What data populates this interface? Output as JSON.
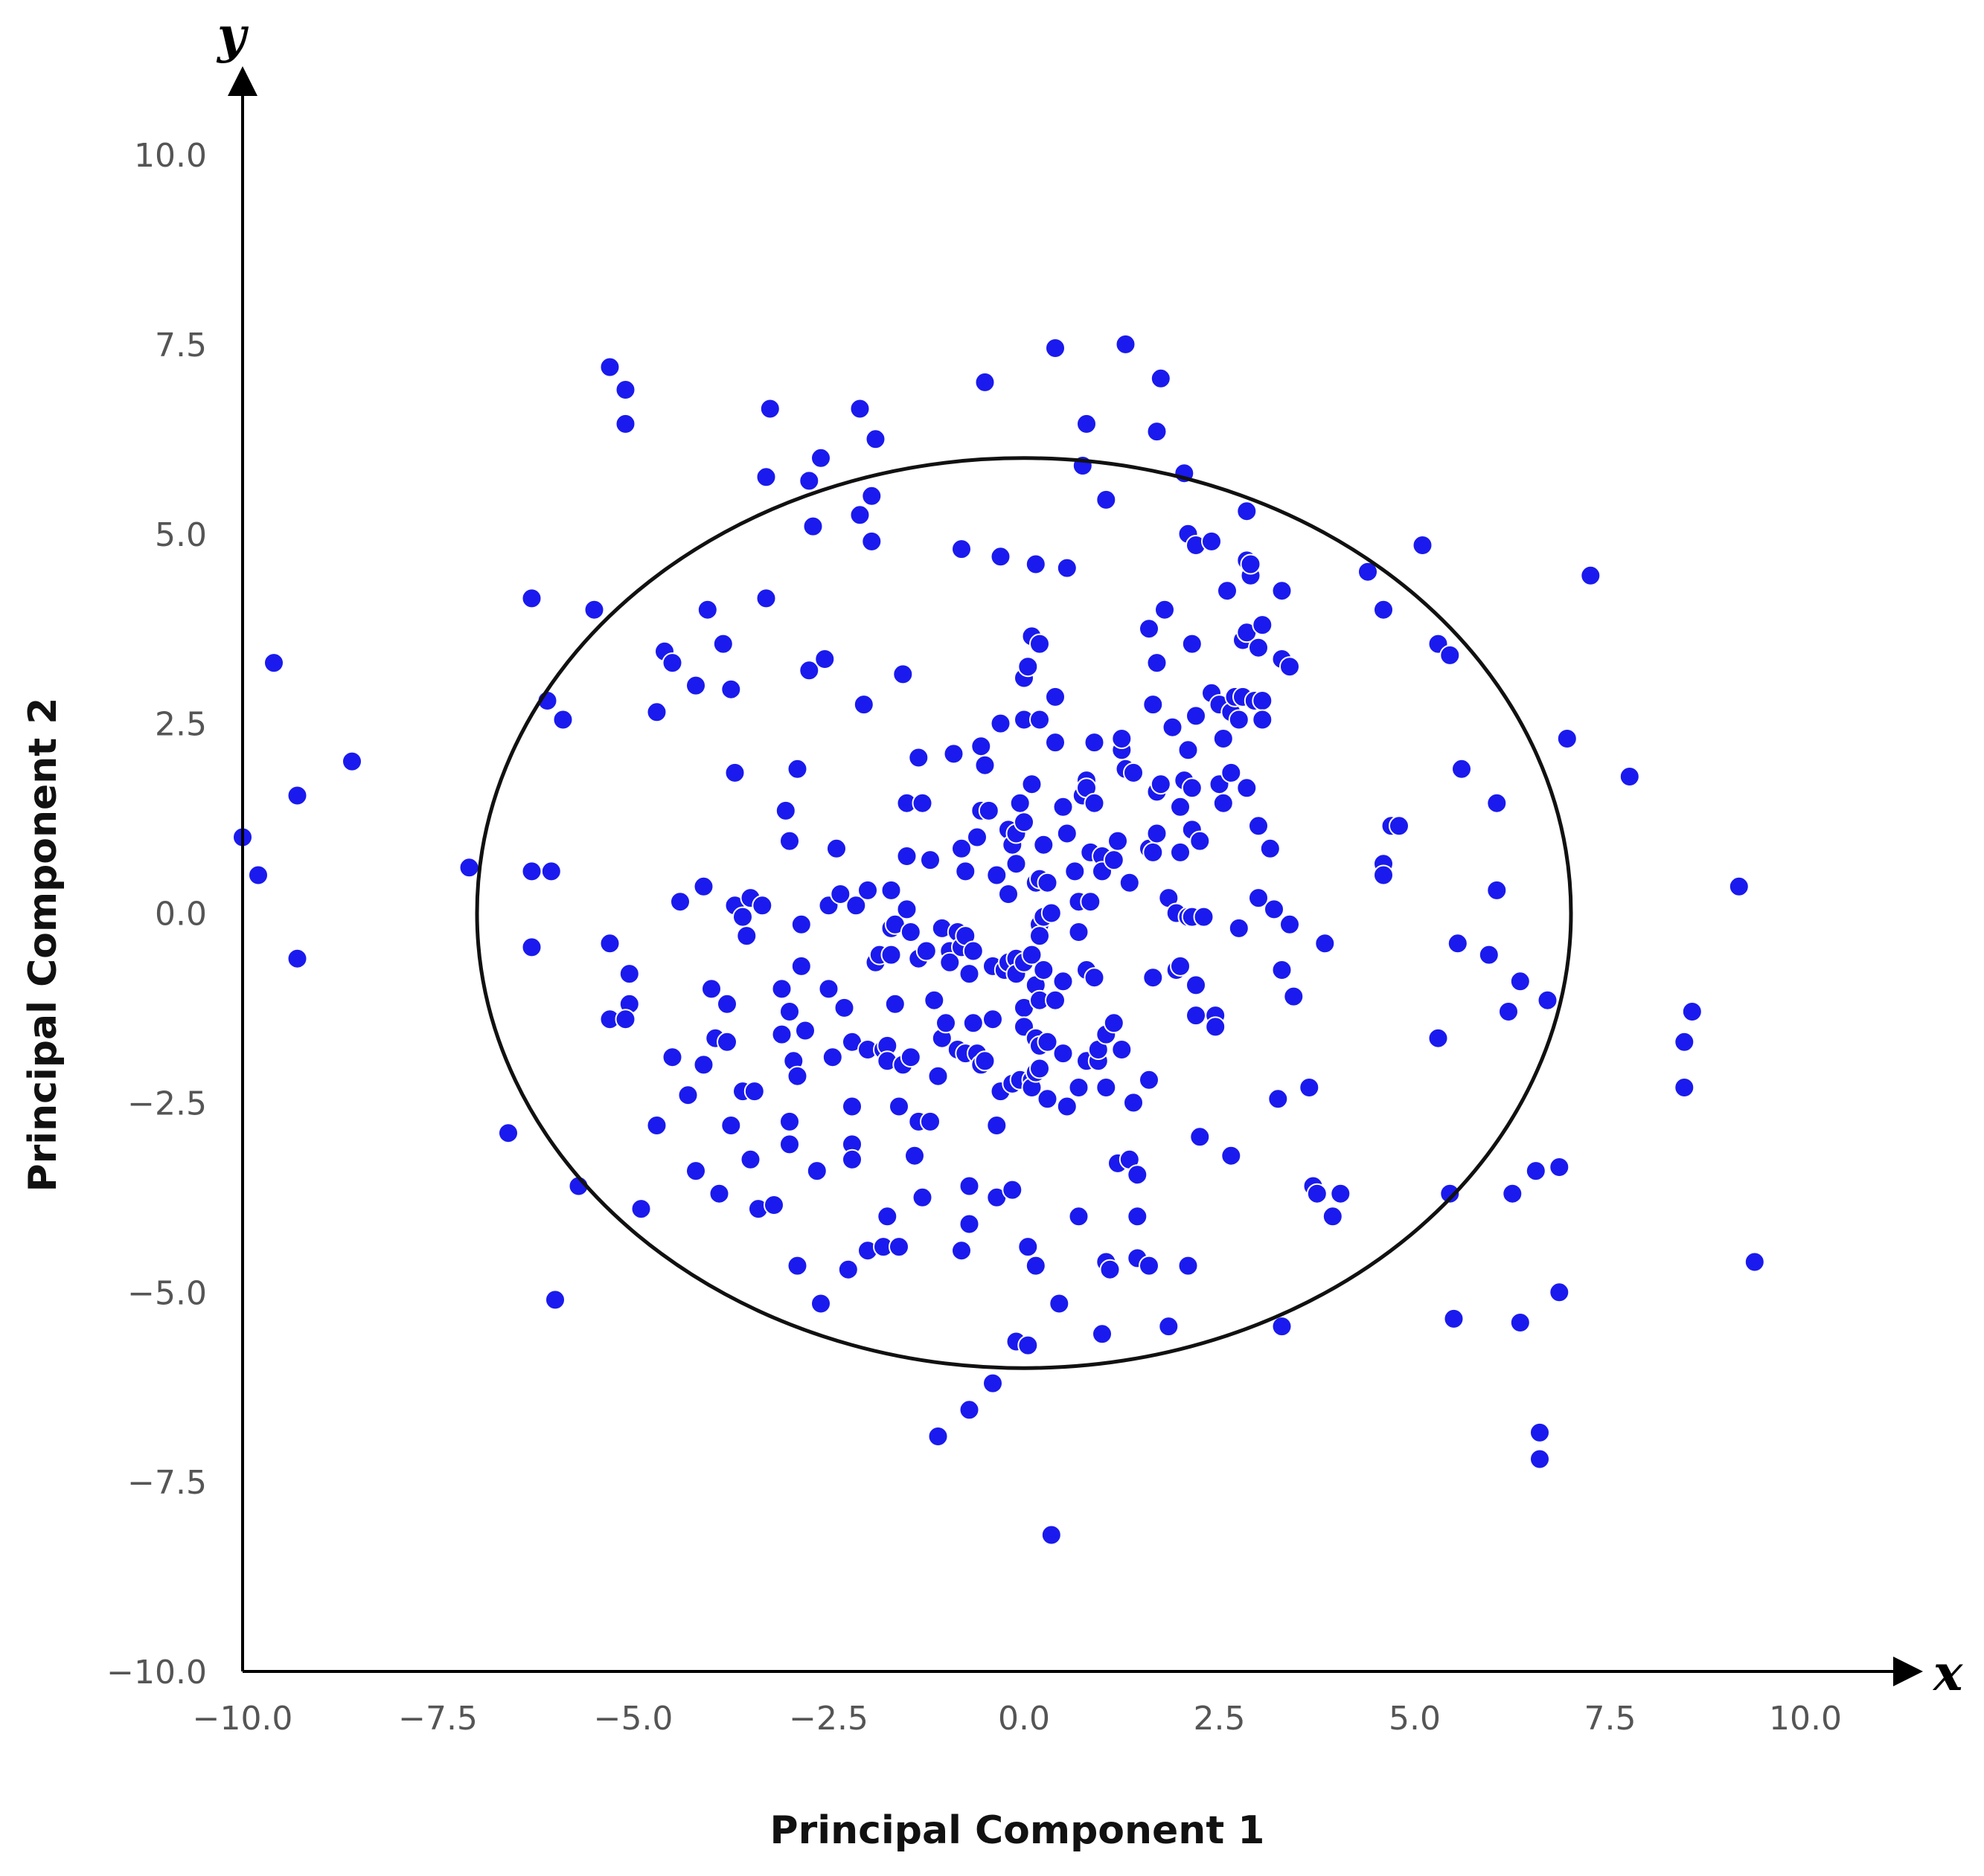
{
  "chart_data": {
    "type": "scatter",
    "xlabel": "Principal Component 1",
    "ylabel": "Principal Component 2",
    "x_axis_letter": "x",
    "y_axis_letter": "y",
    "xlim": [
      -10,
      10.8
    ],
    "ylim": [
      -10,
      11
    ],
    "x_ticks": [
      "−10.0",
      "−7.5",
      "−5.0",
      "−2.5",
      "0.0",
      "2.5",
      "5.0",
      "7.5",
      "10.0"
    ],
    "x_tick_values": [
      -10,
      -7.5,
      -5,
      -2.5,
      0,
      2.5,
      5,
      7.5,
      10
    ],
    "y_ticks": [
      "−10.0",
      "−7.5",
      "−5.0",
      "−2.5",
      "0.0",
      "2.5",
      "5.0",
      "7.5",
      "10.0"
    ],
    "y_tick_values": [
      -10,
      -7.5,
      -5,
      -2.5,
      0,
      2.5,
      5,
      7.5,
      10
    ],
    "grid": false,
    "colors": {
      "points": "#1a1aee",
      "circle": "#111111",
      "axes": "#000000"
    },
    "circle": {
      "center": [
        0,
        0
      ],
      "rx": 7.0,
      "ry": 6.0
    },
    "points": [
      [
        -10.0,
        1.0
      ],
      [
        -9.8,
        0.5
      ],
      [
        -9.6,
        3.3
      ],
      [
        -9.3,
        1.55
      ],
      [
        -9.3,
        -0.6
      ],
      [
        -8.6,
        2.0
      ],
      [
        -7.1,
        0.6
      ],
      [
        -6.6,
        -2.9
      ],
      [
        -6.3,
        4.15
      ],
      [
        -6.3,
        0.55
      ],
      [
        -6.3,
        -0.45
      ],
      [
        -6.1,
        2.8
      ],
      [
        -6.05,
        0.55
      ],
      [
        -6.0,
        -5.1
      ],
      [
        -5.9,
        2.55
      ],
      [
        -5.7,
        -3.6
      ],
      [
        -5.5,
        4.0
      ],
      [
        -5.3,
        7.2
      ],
      [
        -5.3,
        -0.4
      ],
      [
        -5.3,
        -1.4
      ],
      [
        -5.1,
        6.9
      ],
      [
        -5.1,
        6.45
      ],
      [
        -5.05,
        -0.8
      ],
      [
        -5.05,
        -1.2
      ],
      [
        -5.1,
        -1.4
      ],
      [
        -4.9,
        -3.9
      ],
      [
        -4.7,
        -2.8
      ],
      [
        -4.7,
        2.65
      ],
      [
        -4.6,
        3.45
      ],
      [
        -4.5,
        -1.9
      ],
      [
        -4.5,
        3.3
      ],
      [
        -4.4,
        0.15
      ],
      [
        -4.3,
        -2.4
      ],
      [
        -4.2,
        -3.4
      ],
      [
        -4.2,
        3.0
      ],
      [
        -4.1,
        0.35
      ],
      [
        -4.1,
        -2.0
      ],
      [
        -4.05,
        4.0
      ],
      [
        -4.0,
        -1.0
      ],
      [
        -3.95,
        -1.65
      ],
      [
        -3.9,
        -3.7
      ],
      [
        -3.85,
        3.55
      ],
      [
        -3.8,
        -1.2
      ],
      [
        -3.8,
        -1.7
      ],
      [
        -3.75,
        2.95
      ],
      [
        -3.75,
        -2.8
      ],
      [
        -3.7,
        1.85
      ],
      [
        -3.7,
        0.1
      ],
      [
        -3.6,
        -0.05
      ],
      [
        -3.6,
        -2.35
      ],
      [
        -3.55,
        -0.3
      ],
      [
        -3.5,
        0.2
      ],
      [
        -3.5,
        -3.25
      ],
      [
        -3.45,
        -2.35
      ],
      [
        -3.4,
        -3.9
      ],
      [
        -3.35,
        0.1
      ],
      [
        -3.3,
        4.15
      ],
      [
        -3.3,
        5.75
      ],
      [
        -3.25,
        6.65
      ],
      [
        -3.2,
        -3.85
      ],
      [
        -3.1,
        -1.0
      ],
      [
        -3.1,
        -1.6
      ],
      [
        -3.05,
        1.35
      ],
      [
        -3.0,
        -2.75
      ],
      [
        -3.0,
        -3.05
      ],
      [
        -3.0,
        0.95
      ],
      [
        -3.0,
        -1.3
      ],
      [
        -2.95,
        -1.95
      ],
      [
        -2.9,
        -2.15
      ],
      [
        -2.9,
        1.9
      ],
      [
        -2.9,
        -4.65
      ],
      [
        -2.85,
        -0.15
      ],
      [
        -2.85,
        -0.7
      ],
      [
        -2.8,
        -1.55
      ],
      [
        -2.75,
        3.2
      ],
      [
        -2.75,
        5.7
      ],
      [
        -2.7,
        5.1
      ],
      [
        -2.65,
        -3.4
      ],
      [
        -2.6,
        -5.15
      ],
      [
        -2.6,
        6.0
      ],
      [
        -2.55,
        3.35
      ],
      [
        -2.5,
        0.1
      ],
      [
        -2.5,
        -1.0
      ],
      [
        -2.45,
        -1.9
      ],
      [
        -2.4,
        0.85
      ],
      [
        -2.35,
        0.25
      ],
      [
        -2.3,
        -1.25
      ],
      [
        -2.25,
        -4.7
      ],
      [
        -2.2,
        -1.7
      ],
      [
        -2.2,
        -2.55
      ],
      [
        -2.2,
        -3.05
      ],
      [
        -2.2,
        -3.25
      ],
      [
        -2.15,
        0.1
      ],
      [
        -2.1,
        5.25
      ],
      [
        -2.1,
        6.65
      ],
      [
        -2.05,
        2.75
      ],
      [
        -2.0,
        0.3
      ],
      [
        -2.0,
        -1.8
      ],
      [
        -2.0,
        -4.45
      ],
      [
        -1.95,
        5.5
      ],
      [
        -1.95,
        4.9
      ],
      [
        -1.9,
        6.25
      ],
      [
        -1.9,
        -0.65
      ],
      [
        -1.85,
        -0.55
      ],
      [
        -1.8,
        -1.8
      ],
      [
        -1.8,
        -4.4
      ],
      [
        -1.75,
        -1.75
      ],
      [
        -1.75,
        -1.95
      ],
      [
        -1.75,
        -4.0
      ],
      [
        -1.7,
        0.3
      ],
      [
        -1.7,
        -0.2
      ],
      [
        -1.7,
        -0.55
      ],
      [
        -1.65,
        -0.15
      ],
      [
        -1.65,
        -1.2
      ],
      [
        -1.6,
        -2.55
      ],
      [
        -1.6,
        -4.4
      ],
      [
        -1.55,
        -2.0
      ],
      [
        -1.55,
        3.15
      ],
      [
        -1.5,
        1.45
      ],
      [
        -1.5,
        0.75
      ],
      [
        -1.5,
        0.05
      ],
      [
        -1.45,
        -0.25
      ],
      [
        -1.45,
        -1.9
      ],
      [
        -1.4,
        -3.2
      ],
      [
        -1.35,
        2.05
      ],
      [
        -1.35,
        -0.6
      ],
      [
        -1.35,
        -2.75
      ],
      [
        -1.3,
        1.45
      ],
      [
        -1.3,
        -3.75
      ],
      [
        -1.25,
        -0.5
      ],
      [
        -1.2,
        -2.75
      ],
      [
        -1.2,
        0.7
      ],
      [
        -1.15,
        -1.15
      ],
      [
        -1.1,
        -2.15
      ],
      [
        -1.1,
        -6.9
      ],
      [
        -1.05,
        -0.2
      ],
      [
        -1.05,
        -1.65
      ],
      [
        -1.0,
        -1.45
      ],
      [
        -0.95,
        -0.5
      ],
      [
        -0.95,
        -0.65
      ],
      [
        -0.9,
        2.1
      ],
      [
        -0.85,
        -0.25
      ],
      [
        -0.85,
        -1.8
      ],
      [
        -0.8,
        -0.45
      ],
      [
        -0.8,
        4.8
      ],
      [
        -0.8,
        0.85
      ],
      [
        -0.8,
        -4.45
      ],
      [
        -0.75,
        0.55
      ],
      [
        -0.75,
        -0.3
      ],
      [
        -0.75,
        -1.85
      ],
      [
        -0.7,
        -0.8
      ],
      [
        -0.7,
        -3.6
      ],
      [
        -0.7,
        -4.1
      ],
      [
        -0.7,
        -6.55
      ],
      [
        -0.65,
        -0.5
      ],
      [
        -0.65,
        -1.45
      ],
      [
        -0.6,
        1.0
      ],
      [
        -0.6,
        -1.85
      ],
      [
        -0.55,
        2.2
      ],
      [
        -0.55,
        1.35
      ],
      [
        -0.55,
        -2.0
      ],
      [
        -0.5,
        7.0
      ],
      [
        -0.5,
        1.95
      ],
      [
        -0.5,
        -1.95
      ],
      [
        -0.45,
        1.35
      ],
      [
        -0.4,
        -0.7
      ],
      [
        -0.4,
        -1.4
      ],
      [
        -0.4,
        -6.2
      ],
      [
        -0.35,
        -2.8
      ],
      [
        -0.35,
        0.5
      ],
      [
        -0.35,
        -3.75
      ],
      [
        -0.3,
        4.7
      ],
      [
        -0.3,
        2.5
      ],
      [
        -0.3,
        -2.35
      ],
      [
        -0.25,
        -0.75
      ],
      [
        -0.2,
        0.25
      ],
      [
        -0.2,
        1.1
      ],
      [
        -0.2,
        -0.65
      ],
      [
        -0.15,
        0.9
      ],
      [
        -0.15,
        -2.25
      ],
      [
        -0.15,
        -3.65
      ],
      [
        -0.1,
        1.05
      ],
      [
        -0.1,
        0.65
      ],
      [
        -0.1,
        -0.6
      ],
      [
        -0.1,
        -0.8
      ],
      [
        -0.1,
        -5.65
      ],
      [
        -0.05,
        1.45
      ],
      [
        -0.05,
        -2.2
      ],
      [
        0.0,
        1.2
      ],
      [
        0.0,
        -0.65
      ],
      [
        0.0,
        -1.25
      ],
      [
        0.0,
        -1.5
      ],
      [
        0.0,
        2.55
      ],
      [
        0.0,
        3.1
      ],
      [
        0.05,
        3.25
      ],
      [
        0.05,
        -4.4
      ],
      [
        0.05,
        -5.7
      ],
      [
        0.1,
        3.65
      ],
      [
        0.1,
        1.7
      ],
      [
        0.1,
        -0.55
      ],
      [
        0.1,
        -2.2
      ],
      [
        0.1,
        -2.3
      ],
      [
        0.15,
        4.6
      ],
      [
        0.15,
        0.4
      ],
      [
        0.15,
        -0.95
      ],
      [
        0.15,
        -1.65
      ],
      [
        0.15,
        -2.1
      ],
      [
        0.15,
        -4.65
      ],
      [
        0.2,
        2.55
      ],
      [
        0.2,
        3.55
      ],
      [
        0.2,
        0.45
      ],
      [
        0.2,
        -0.15
      ],
      [
        0.2,
        -0.3
      ],
      [
        0.2,
        -1.15
      ],
      [
        0.2,
        -1.75
      ],
      [
        0.2,
        -2.05
      ],
      [
        0.25,
        0.9
      ],
      [
        0.25,
        -0.05
      ],
      [
        0.25,
        -0.75
      ],
      [
        0.3,
        0.4
      ],
      [
        0.3,
        -2.45
      ],
      [
        0.3,
        -1.7
      ],
      [
        0.35,
        0.0
      ],
      [
        0.35,
        -8.2
      ],
      [
        0.4,
        7.45
      ],
      [
        0.4,
        2.25
      ],
      [
        0.4,
        2.85
      ],
      [
        0.4,
        -1.15
      ],
      [
        0.45,
        -5.15
      ],
      [
        0.5,
        1.4
      ],
      [
        0.5,
        -0.9
      ],
      [
        0.5,
        -1.85
      ],
      [
        0.55,
        4.55
      ],
      [
        0.55,
        1.05
      ],
      [
        0.55,
        -2.55
      ],
      [
        0.65,
        0.55
      ],
      [
        0.7,
        0.15
      ],
      [
        0.7,
        -0.25
      ],
      [
        0.7,
        -4.0
      ],
      [
        0.7,
        -2.3
      ],
      [
        0.75,
        5.9
      ],
      [
        0.75,
        1.55
      ],
      [
        0.8,
        6.45
      ],
      [
        0.8,
        1.75
      ],
      [
        0.8,
        1.65
      ],
      [
        0.8,
        -0.75
      ],
      [
        0.8,
        -1.95
      ],
      [
        0.85,
        0.8
      ],
      [
        0.85,
        0.15
      ],
      [
        0.9,
        2.25
      ],
      [
        0.9,
        1.45
      ],
      [
        0.9,
        -0.85
      ],
      [
        0.95,
        -1.95
      ],
      [
        0.95,
        -1.8
      ],
      [
        1.0,
        0.75
      ],
      [
        1.0,
        0.55
      ],
      [
        1.0,
        -5.55
      ],
      [
        1.05,
        5.45
      ],
      [
        1.05,
        -1.6
      ],
      [
        1.05,
        -2.3
      ],
      [
        1.05,
        -4.6
      ],
      [
        1.1,
        -4.7
      ],
      [
        1.15,
        0.7
      ],
      [
        1.15,
        -1.45
      ],
      [
        1.2,
        0.95
      ],
      [
        1.2,
        -3.3
      ],
      [
        1.25,
        2.15
      ],
      [
        1.25,
        2.3
      ],
      [
        1.25,
        -1.8
      ],
      [
        1.3,
        7.5
      ],
      [
        1.3,
        1.9
      ],
      [
        1.35,
        0.4
      ],
      [
        1.35,
        -3.25
      ],
      [
        1.4,
        1.85
      ],
      [
        1.4,
        -2.5
      ],
      [
        1.45,
        -3.45
      ],
      [
        1.45,
        -4.0
      ],
      [
        1.45,
        -4.55
      ],
      [
        1.6,
        3.75
      ],
      [
        1.6,
        0.85
      ],
      [
        1.6,
        -2.2
      ],
      [
        1.6,
        -4.65
      ],
      [
        1.65,
        2.75
      ],
      [
        1.65,
        0.8
      ],
      [
        1.65,
        -0.85
      ],
      [
        1.7,
        6.35
      ],
      [
        1.7,
        3.3
      ],
      [
        1.7,
        1.6
      ],
      [
        1.7,
        1.05
      ],
      [
        1.75,
        7.05
      ],
      [
        1.75,
        1.7
      ],
      [
        1.8,
        4.0
      ],
      [
        1.85,
        0.2
      ],
      [
        1.85,
        -5.45
      ],
      [
        1.9,
        2.45
      ],
      [
        1.95,
        0.0
      ],
      [
        1.95,
        -0.75
      ],
      [
        2.0,
        1.4
      ],
      [
        2.0,
        0.8
      ],
      [
        2.0,
        -0.7
      ],
      [
        2.05,
        5.8
      ],
      [
        2.05,
        1.75
      ],
      [
        2.1,
        5.0
      ],
      [
        2.1,
        2.15
      ],
      [
        2.1,
        -0.05
      ],
      [
        2.1,
        -4.65
      ],
      [
        2.15,
        3.55
      ],
      [
        2.15,
        1.65
      ],
      [
        2.15,
        1.1
      ],
      [
        2.15,
        -0.05
      ],
      [
        2.2,
        4.85
      ],
      [
        2.2,
        2.6
      ],
      [
        2.2,
        -0.95
      ],
      [
        2.2,
        -1.35
      ],
      [
        2.25,
        0.95
      ],
      [
        2.25,
        -2.95
      ],
      [
        2.3,
        -0.05
      ],
      [
        2.4,
        4.9
      ],
      [
        2.4,
        2.9
      ],
      [
        2.45,
        -1.35
      ],
      [
        2.45,
        -1.5
      ],
      [
        2.5,
        2.75
      ],
      [
        2.5,
        1.7
      ],
      [
        2.55,
        2.3
      ],
      [
        2.55,
        1.45
      ],
      [
        2.6,
        4.25
      ],
      [
        2.65,
        2.65
      ],
      [
        2.65,
        1.85
      ],
      [
        2.65,
        -3.2
      ],
      [
        2.7,
        2.85
      ],
      [
        2.75,
        2.55
      ],
      [
        2.75,
        -0.2
      ],
      [
        2.8,
        3.6
      ],
      [
        2.8,
        2.85
      ],
      [
        2.85,
        5.3
      ],
      [
        2.85,
        4.65
      ],
      [
        2.85,
        3.7
      ],
      [
        2.85,
        1.65
      ],
      [
        2.9,
        4.45
      ],
      [
        2.9,
        4.6
      ],
      [
        2.95,
        2.8
      ],
      [
        3.0,
        3.5
      ],
      [
        3.0,
        1.15
      ],
      [
        3.0,
        0.2
      ],
      [
        3.05,
        3.8
      ],
      [
        3.05,
        2.8
      ],
      [
        3.05,
        2.55
      ],
      [
        3.15,
        0.85
      ],
      [
        3.2,
        0.05
      ],
      [
        3.25,
        -2.45
      ],
      [
        3.3,
        4.25
      ],
      [
        3.3,
        3.35
      ],
      [
        3.3,
        -0.75
      ],
      [
        3.3,
        -5.45
      ],
      [
        3.4,
        3.25
      ],
      [
        3.4,
        -0.15
      ],
      [
        3.45,
        -1.1
      ],
      [
        3.65,
        -2.3
      ],
      [
        3.7,
        -3.6
      ],
      [
        3.75,
        -3.7
      ],
      [
        3.85,
        -0.4
      ],
      [
        3.95,
        -4.0
      ],
      [
        4.05,
        -3.7
      ],
      [
        4.4,
        4.5
      ],
      [
        4.6,
        4.0
      ],
      [
        4.6,
        0.65
      ],
      [
        4.6,
        0.5
      ],
      [
        4.7,
        1.15
      ],
      [
        4.8,
        1.15
      ],
      [
        5.1,
        4.85
      ],
      [
        5.3,
        3.55
      ],
      [
        5.3,
        -1.65
      ],
      [
        5.45,
        3.4
      ],
      [
        5.45,
        -3.7
      ],
      [
        5.5,
        -5.35
      ],
      [
        5.55,
        -0.4
      ],
      [
        5.6,
        1.9
      ],
      [
        5.95,
        -0.55
      ],
      [
        6.05,
        1.45
      ],
      [
        6.05,
        0.3
      ],
      [
        6.2,
        -1.3
      ],
      [
        6.25,
        -3.7
      ],
      [
        6.35,
        -5.4
      ],
      [
        6.35,
        -0.9
      ],
      [
        6.55,
        -3.4
      ],
      [
        6.6,
        -6.85
      ],
      [
        6.6,
        -7.2
      ],
      [
        6.7,
        -1.15
      ],
      [
        6.85,
        -3.35
      ],
      [
        6.85,
        -5.0
      ],
      [
        6.95,
        2.3
      ],
      [
        7.25,
        4.45
      ],
      [
        7.75,
        1.8
      ],
      [
        8.45,
        -1.7
      ],
      [
        8.45,
        -2.3
      ],
      [
        8.55,
        -1.3
      ],
      [
        9.15,
        0.35
      ],
      [
        9.35,
        -4.6
      ]
    ]
  }
}
